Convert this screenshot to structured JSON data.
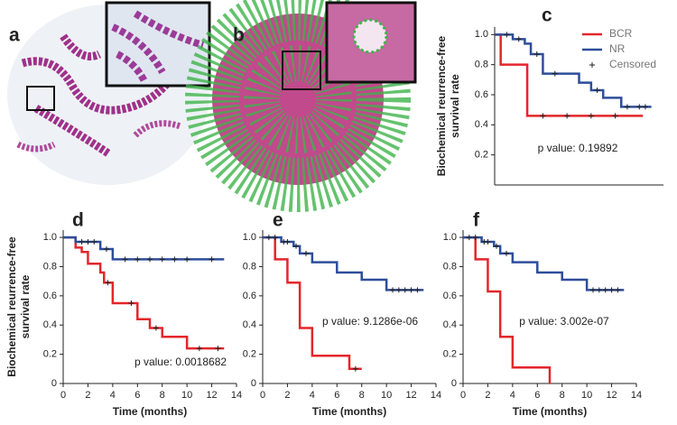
{
  "panels": {
    "a": {
      "label": "a"
    },
    "b": {
      "label": "b"
    }
  },
  "chart_data": [
    {
      "type": "line",
      "panel_label": "c",
      "ylabel": [
        "Biochemical reurrence-free",
        "survival rate"
      ],
      "annotation": "p value: 0.19892",
      "xlim": [
        0,
        14
      ],
      "ylim": [
        0,
        1.05
      ],
      "yticks": [
        0.2,
        0.4,
        0.6,
        0.8,
        {
          "value": 1,
          "label": "1.0"
        }
      ],
      "legend": "upper right",
      "series": [
        {
          "name": "BCR",
          "color": "#e3262b",
          "x": [
            0,
            0.5,
            2.7,
            12.3
          ],
          "values": [
            1,
            0.8,
            0.46,
            0.46
          ]
        },
        {
          "name": "NR",
          "color": "#2e4d9b",
          "x": [
            0,
            1.5,
            2.5,
            3,
            4,
            7,
            8,
            9,
            10.5,
            13
          ],
          "values": [
            1,
            0.97,
            0.94,
            0.87,
            0.74,
            0.68,
            0.63,
            0.58,
            0.52,
            0.52
          ]
        },
        {
          "name": "Censored",
          "color": "#222222",
          "marker": "+",
          "x": [
            1,
            2,
            3.5,
            4,
            5,
            6,
            8,
            8.5,
            10,
            11,
            12,
            12.5
          ],
          "values": [
            1,
            0.97,
            0.87,
            0.46,
            0.74,
            0.46,
            0.46,
            0.63,
            0.46,
            0.52,
            0.52,
            0.52
          ]
        }
      ]
    },
    {
      "type": "line",
      "panel_label": "d",
      "ylabel": [
        "Biochemical reurrence-free",
        "survival rate"
      ],
      "xlabel": "Time (months)",
      "annotation": "p value: 0.0018682",
      "xlim": [
        0,
        14
      ],
      "ylim": [
        0,
        1.05
      ],
      "xticks": [
        0,
        2,
        4,
        6,
        8,
        10,
        12,
        14
      ],
      "yticks": [
        0,
        0.2,
        0.4,
        0.6,
        0.8,
        {
          "value": 1,
          "label": "1.0"
        }
      ],
      "series": [
        {
          "color": "#e3262b",
          "x": [
            0,
            1,
            1.5,
            2,
            3,
            3.3,
            4,
            6,
            7,
            8,
            10,
            13
          ],
          "values": [
            1,
            0.93,
            0.9,
            0.82,
            0.76,
            0.69,
            0.55,
            0.44,
            0.38,
            0.32,
            0.24,
            0.24
          ]
        },
        {
          "color": "#2e4d9b",
          "x": [
            0,
            1,
            3,
            4,
            13
          ],
          "values": [
            1,
            0.97,
            0.92,
            0.85,
            0.85
          ]
        },
        {
          "color": "#222222",
          "marker": "+",
          "x": [
            1.5,
            2,
            2.5,
            3.5,
            3.6,
            5,
            5.5,
            6,
            7,
            7.5,
            8,
            9,
            10,
            11,
            12,
            12.5
          ],
          "values": [
            0.97,
            0.97,
            0.97,
            0.92,
            0.69,
            0.85,
            0.55,
            0.85,
            0.85,
            0.38,
            0.85,
            0.85,
            0.85,
            0.24,
            0.85,
            0.24
          ]
        }
      ]
    },
    {
      "type": "line",
      "panel_label": "e",
      "xlabel": "Time (months)",
      "annotation": "p value: 9.1286e-06",
      "xlim": [
        0,
        14
      ],
      "ylim": [
        0,
        1.05
      ],
      "xticks": [
        0,
        2,
        4,
        6,
        8,
        10,
        12,
        14
      ],
      "yticks": [
        0,
        0.2,
        0.4,
        0.6,
        0.8,
        {
          "value": 1,
          "label": "1.0"
        }
      ],
      "series": [
        {
          "color": "#e3262b",
          "x": [
            0,
            1,
            2,
            3,
            4,
            7,
            8
          ],
          "values": [
            1,
            0.85,
            0.69,
            0.38,
            0.19,
            0.1,
            0.1
          ]
        },
        {
          "color": "#2e4d9b",
          "x": [
            0,
            1.5,
            2.5,
            3,
            4,
            6,
            8,
            10,
            13
          ],
          "values": [
            1,
            0.97,
            0.94,
            0.89,
            0.83,
            0.76,
            0.71,
            0.64,
            0.64
          ]
        },
        {
          "color": "#222222",
          "marker": "+",
          "x": [
            0.5,
            1,
            1.7,
            2,
            2.7,
            3.5,
            7.5,
            10.5,
            11,
            11.5,
            12,
            12.5
          ],
          "values": [
            1,
            1,
            0.97,
            0.97,
            0.94,
            0.89,
            0.1,
            0.64,
            0.64,
            0.64,
            0.64,
            0.64
          ]
        }
      ]
    },
    {
      "type": "line",
      "panel_label": "f",
      "xlabel": "Time (months)",
      "annotation": "p value: 3.002e-07",
      "xlim": [
        0,
        14
      ],
      "ylim": [
        0,
        1.05
      ],
      "xticks": [
        0,
        2,
        4,
        6,
        8,
        10,
        12,
        14
      ],
      "yticks": [
        0,
        0.2,
        0.4,
        0.6,
        0.8,
        {
          "value": 1,
          "label": "1.0"
        }
      ],
      "series": [
        {
          "color": "#e3262b",
          "x": [
            0,
            1,
            2,
            3,
            4,
            7
          ],
          "values": [
            1,
            0.85,
            0.63,
            0.32,
            0.11,
            0
          ]
        },
        {
          "color": "#2e4d9b",
          "x": [
            0,
            1.5,
            2.5,
            3,
            4,
            6,
            8,
            10,
            13
          ],
          "values": [
            1,
            0.97,
            0.94,
            0.89,
            0.83,
            0.76,
            0.71,
            0.64,
            0.64
          ]
        },
        {
          "color": "#222222",
          "marker": "+",
          "x": [
            0.5,
            1,
            1.7,
            2,
            2.7,
            3.5,
            10.5,
            11,
            11.5,
            12,
            12.5
          ],
          "values": [
            1,
            1,
            0.97,
            0.97,
            0.94,
            0.89,
            0.64,
            0.64,
            0.64,
            0.64,
            0.64
          ]
        }
      ]
    }
  ]
}
